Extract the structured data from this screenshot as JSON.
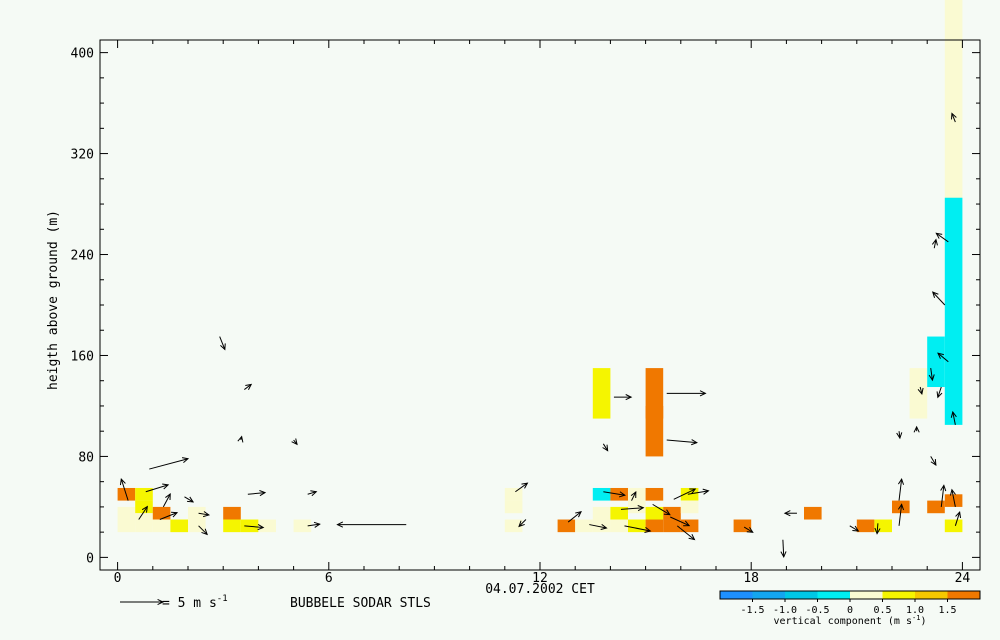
{
  "chart_data": {
    "type": "heatmap",
    "xlabel": "04.07.2002 CET",
    "ylabel": "heigth above ground (m)",
    "xlim": [
      -0.5,
      24.5
    ],
    "ylim": [
      -10,
      410
    ],
    "x_ticks": [
      0,
      6,
      12,
      18,
      24
    ],
    "y_ticks": [
      0,
      80,
      160,
      240,
      320,
      400
    ],
    "caption": "BUBBELE SODAR STLS",
    "arrow_legend": {
      "prefix": "= 5 m s",
      "sup": "-1",
      "magnitude": 5
    },
    "colorbar": {
      "title": "vertical component (m s",
      "title_sup": "-1",
      "title_suffix": ")",
      "tick_labels": [
        "-1.5",
        "-1.0",
        "-0.5",
        "0",
        "0.5",
        "1.0",
        "1.5"
      ],
      "tick_values": [
        -1.5,
        -1.0,
        -0.5,
        0,
        0.5,
        1.0,
        1.5
      ],
      "bins": [
        {
          "from": -2.0,
          "to": -1.5,
          "color": "#1e90ff"
        },
        {
          "from": -1.5,
          "to": -1.0,
          "color": "#14a6f0"
        },
        {
          "from": -1.0,
          "to": -0.5,
          "color": "#00c8e6"
        },
        {
          "from": -0.5,
          "to": 0.0,
          "color": "#00eef2"
        },
        {
          "from": 0.0,
          "to": 0.5,
          "color": "#fafad2"
        },
        {
          "from": 0.5,
          "to": 1.0,
          "color": "#f5f500"
        },
        {
          "from": 1.0,
          "to": 1.5,
          "color": "#f5c800"
        },
        {
          "from": 1.5,
          "to": 2.0,
          "color": "#f07800"
        }
      ]
    },
    "cells": [
      {
        "t": 0.25,
        "z": 50,
        "w": 1.8
      },
      {
        "t": 0.25,
        "z": 35,
        "w": 0.2
      },
      {
        "t": 0.25,
        "z": 25,
        "w": 0.2
      },
      {
        "t": 0.75,
        "z": 50,
        "w": 0.8
      },
      {
        "t": 0.75,
        "z": 40,
        "w": 0.8
      },
      {
        "t": 0.75,
        "z": 30,
        "w": 0.2
      },
      {
        "t": 0.75,
        "z": 25,
        "w": 0.2
      },
      {
        "t": 1.25,
        "z": 35,
        "w": 1.8
      },
      {
        "t": 1.25,
        "z": 25,
        "w": 0.2
      },
      {
        "t": 1.75,
        "z": 25,
        "w": 0.8
      },
      {
        "t": 2.25,
        "z": 35,
        "w": 0.2
      },
      {
        "t": 2.25,
        "z": 25,
        "w": 0.2
      },
      {
        "t": 3.25,
        "z": 35,
        "w": 1.8
      },
      {
        "t": 3.25,
        "z": 25,
        "w": 0.8
      },
      {
        "t": 3.75,
        "z": 25,
        "w": 0.8
      },
      {
        "t": 4.25,
        "z": 25,
        "w": 0.2
      },
      {
        "t": 5.25,
        "z": 25,
        "w": 0.2
      },
      {
        "t": 11.25,
        "z": 50,
        "w": 0.2
      },
      {
        "t": 11.25,
        "z": 40,
        "w": 0.2
      },
      {
        "t": 11.25,
        "z": 25,
        "w": 0.2
      },
      {
        "t": 12.75,
        "z": 25,
        "w": 1.8
      },
      {
        "t": 13.25,
        "z": 25,
        "w": 0.2
      },
      {
        "t": 13.75,
        "z": 130,
        "w": 0.8
      },
      {
        "t": 13.75,
        "z": 50,
        "w": -0.2
      },
      {
        "t": 13.75,
        "z": 35,
        "w": 0.2
      },
      {
        "t": 13.75,
        "z": 25,
        "w": 0.2
      },
      {
        "t": 14.25,
        "z": 50,
        "w": 1.8
      },
      {
        "t": 14.25,
        "z": 35,
        "w": 0.8
      },
      {
        "t": 14.25,
        "z": 25,
        "w": 0.2
      },
      {
        "t": 14.75,
        "z": 50,
        "w": 0.2
      },
      {
        "t": 14.75,
        "z": 40,
        "w": 0.2
      },
      {
        "t": 14.75,
        "z": 25,
        "w": 0.8
      },
      {
        "t": 15.25,
        "z": 130,
        "w": 1.8
      },
      {
        "t": 15.25,
        "z": 100,
        "w": 1.8
      },
      {
        "t": 15.25,
        "z": 50,
        "w": 1.8
      },
      {
        "t": 15.25,
        "z": 35,
        "w": 0.8
      },
      {
        "t": 15.25,
        "z": 25,
        "w": 1.8
      },
      {
        "t": 15.75,
        "z": 35,
        "w": 1.8
      },
      {
        "t": 15.75,
        "z": 25,
        "w": 1.8
      },
      {
        "t": 16.25,
        "z": 50,
        "w": 0.8
      },
      {
        "t": 16.25,
        "z": 40,
        "w": 0.2
      },
      {
        "t": 16.25,
        "z": 25,
        "w": 1.8
      },
      {
        "t": 17.75,
        "z": 25,
        "w": 1.8
      },
      {
        "t": 19.75,
        "z": 35,
        "w": 1.8
      },
      {
        "t": 21.25,
        "z": 25,
        "w": 1.8
      },
      {
        "t": 21.75,
        "z": 25,
        "w": 0.8
      },
      {
        "t": 22.25,
        "z": 40,
        "w": 1.8
      },
      {
        "t": 22.75,
        "z": 130,
        "w": 0.2
      },
      {
        "t": 23.25,
        "z": 155,
        "w": -0.2
      },
      {
        "t": 23.25,
        "z": 40,
        "w": 1.8
      },
      {
        "t": 23.75,
        "z": 340,
        "w": 0.2
      },
      {
        "t": 23.75,
        "z": 195,
        "w": -0.2
      },
      {
        "t": 23.75,
        "z": 45,
        "w": 1.8
      },
      {
        "t": 23.75,
        "z": 25,
        "w": 0.8
      }
    ],
    "wind_arrows": [
      {
        "t": 0.3,
        "z": 45,
        "u": -0.8,
        "v": 2.5
      },
      {
        "t": 0.8,
        "z": 52,
        "u": 2.6,
        "v": 0.8
      },
      {
        "t": 0.9,
        "z": 70,
        "u": 4.5,
        "v": 1.2
      },
      {
        "t": 0.6,
        "z": 30,
        "u": 1.0,
        "v": 1.5
      },
      {
        "t": 1.3,
        "z": 40,
        "u": 0.8,
        "v": 1.5
      },
      {
        "t": 1.2,
        "z": 30,
        "u": 2.0,
        "v": 0.8
      },
      {
        "t": 1.9,
        "z": 48,
        "u": 1.0,
        "v": -0.6
      },
      {
        "t": 2.3,
        "z": 35,
        "u": 1.2,
        "v": -0.2
      },
      {
        "t": 2.3,
        "z": 25,
        "u": 1.0,
        "v": -1.0
      },
      {
        "t": 2.9,
        "z": 175,
        "u": 0.6,
        "v": -1.5
      },
      {
        "t": 3.6,
        "z": 133,
        "u": 0.8,
        "v": 0.6
      },
      {
        "t": 3.5,
        "z": 93,
        "u": 0.1,
        "v": 0.4
      },
      {
        "t": 3.7,
        "z": 50,
        "u": 2.0,
        "v": 0.2
      },
      {
        "t": 3.6,
        "z": 25,
        "u": 2.2,
        "v": -0.2
      },
      {
        "t": 5.0,
        "z": 93,
        "u": 0.4,
        "v": -0.5
      },
      {
        "t": 5.4,
        "z": 50,
        "u": 1.0,
        "v": 0.3
      },
      {
        "t": 5.4,
        "z": 25,
        "u": 1.4,
        "v": 0.2
      },
      {
        "t": 8.2,
        "z": 26,
        "u": -8.0,
        "v": 0.0
      },
      {
        "t": 11.3,
        "z": 52,
        "u": 1.4,
        "v": 1.0
      },
      {
        "t": 11.6,
        "z": 30,
        "u": -0.8,
        "v": -0.8
      },
      {
        "t": 12.8,
        "z": 28,
        "u": 1.5,
        "v": 1.2
      },
      {
        "t": 13.4,
        "z": 26,
        "u": 2.0,
        "v": -0.4
      },
      {
        "t": 14.1,
        "z": 127,
        "u": 2.0,
        "v": 0.0
      },
      {
        "t": 13.8,
        "z": 90,
        "u": 0.5,
        "v": -0.8
      },
      {
        "t": 13.8,
        "z": 52,
        "u": 2.5,
        "v": -0.4
      },
      {
        "t": 14.3,
        "z": 38,
        "u": 2.6,
        "v": 0.2
      },
      {
        "t": 14.6,
        "z": 45,
        "u": 0.5,
        "v": 1.0
      },
      {
        "t": 14.4,
        "z": 25,
        "u": 3.0,
        "v": -0.6
      },
      {
        "t": 15.6,
        "z": 130,
        "u": 4.5,
        "v": 0.0
      },
      {
        "t": 15.6,
        "z": 93,
        "u": 3.5,
        "v": -0.3
      },
      {
        "t": 15.2,
        "z": 42,
        "u": 2.0,
        "v": -1.2
      },
      {
        "t": 15.8,
        "z": 46,
        "u": 2.5,
        "v": 1.2
      },
      {
        "t": 15.7,
        "z": 32,
        "u": 2.2,
        "v": -1.0
      },
      {
        "t": 16.2,
        "z": 50,
        "u": 2.4,
        "v": 0.4
      },
      {
        "t": 15.9,
        "z": 25,
        "u": 2.0,
        "v": -1.6
      },
      {
        "t": 17.8,
        "z": 24,
        "u": 1.0,
        "v": -0.6
      },
      {
        "t": 18.9,
        "z": 14,
        "u": 0.1,
        "v": -2.0
      },
      {
        "t": 19.3,
        "z": 35,
        "u": -1.4,
        "v": 0.0
      },
      {
        "t": 20.8,
        "z": 25,
        "u": 1.0,
        "v": -0.6
      },
      {
        "t": 21.6,
        "z": 27,
        "u": -0.1,
        "v": -1.2
      },
      {
        "t": 22.2,
        "z": 100,
        "u": 0.1,
        "v": -0.8
      },
      {
        "t": 22.2,
        "z": 45,
        "u": 0.3,
        "v": 2.5
      },
      {
        "t": 22.2,
        "z": 25,
        "u": 0.3,
        "v": 2.5
      },
      {
        "t": 22.7,
        "z": 100,
        "u": 0.0,
        "v": 0.5
      },
      {
        "t": 22.8,
        "z": 135,
        "u": 0.2,
        "v": -0.8
      },
      {
        "t": 23.1,
        "z": 80,
        "u": 0.6,
        "v": -1.0
      },
      {
        "t": 23.1,
        "z": 150,
        "u": 0.2,
        "v": -1.4
      },
      {
        "t": 23.4,
        "z": 135,
        "u": -0.4,
        "v": -1.2
      },
      {
        "t": 23.2,
        "z": 245,
        "u": 0.2,
        "v": 1.0
      },
      {
        "t": 23.6,
        "z": 250,
        "u": -1.4,
        "v": 1.0
      },
      {
        "t": 23.5,
        "z": 200,
        "u": -1.4,
        "v": 1.5
      },
      {
        "t": 23.6,
        "z": 155,
        "u": -1.2,
        "v": 1.0
      },
      {
        "t": 23.8,
        "z": 105,
        "u": -0.3,
        "v": 1.5
      },
      {
        "t": 23.8,
        "z": 345,
        "u": -0.4,
        "v": 1.0
      },
      {
        "t": 23.4,
        "z": 40,
        "u": 0.3,
        "v": 2.5
      },
      {
        "t": 23.8,
        "z": 40,
        "u": -0.4,
        "v": 2.0
      },
      {
        "t": 23.8,
        "z": 25,
        "u": 0.5,
        "v": 1.6
      }
    ]
  }
}
